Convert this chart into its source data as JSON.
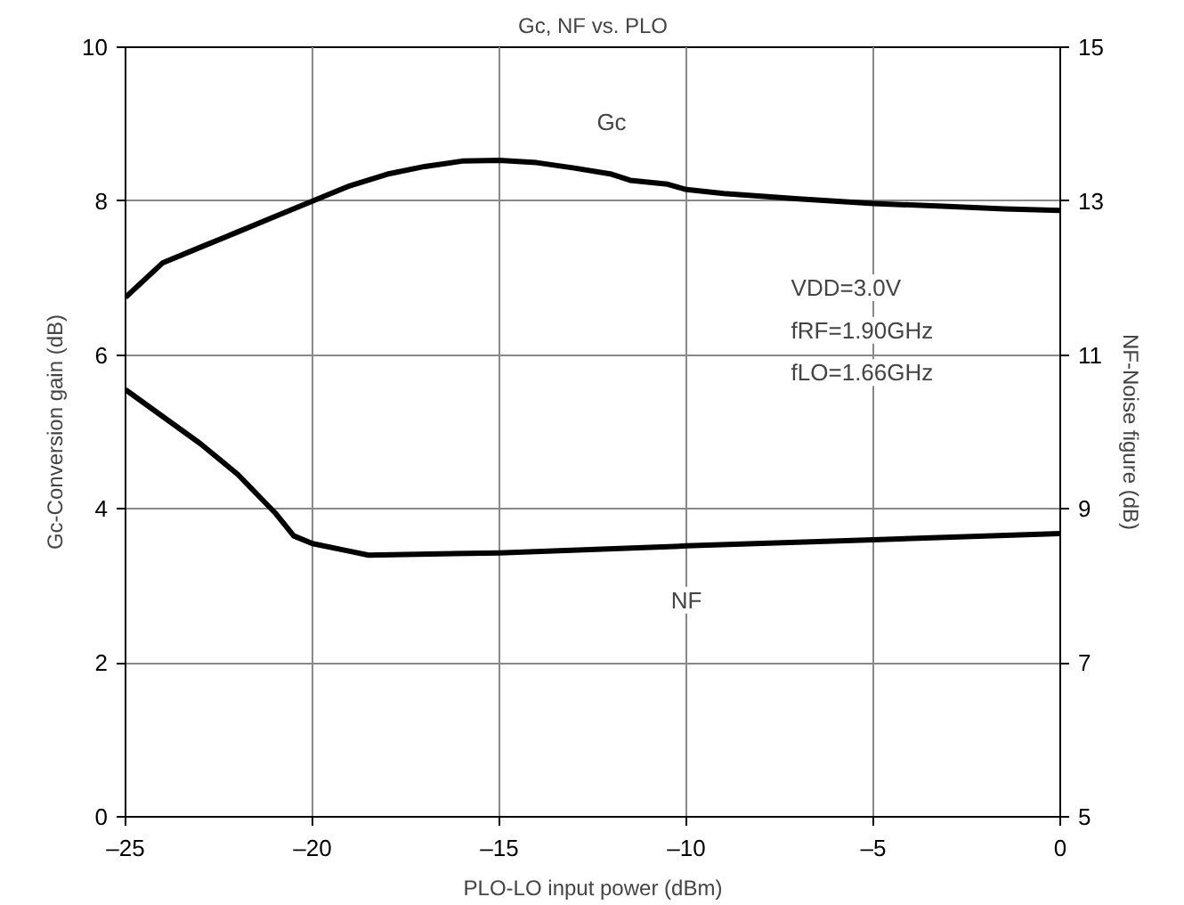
{
  "chart_data": {
    "type": "line",
    "title": "Gc, NF vs. PLO",
    "xlabel": "PLO-LO input power (dBm)",
    "ylabel": "Gc-Conversion gain (dB)",
    "y2label": "NF-Noise figure (dB)",
    "xlim": [
      -25,
      0
    ],
    "xticks": [
      {
        "value": -25,
        "label": "–25"
      },
      {
        "value": -20,
        "label": "–20"
      },
      {
        "value": -15,
        "label": "–15"
      },
      {
        "value": -10,
        "label": "–10"
      },
      {
        "value": -5,
        "label": "–5"
      },
      0
    ],
    "ylim": [
      0,
      10
    ],
    "yticks": [
      0,
      2,
      4,
      6,
      8,
      10
    ],
    "y2lim": [
      5,
      15
    ],
    "y2ticks": [
      5,
      7,
      9,
      11,
      13,
      15
    ],
    "grid": true,
    "line_style": "solid",
    "marker": "none",
    "series": [
      {
        "name": "Gc",
        "color": "#000000",
        "x": [
          -25,
          -24,
          -23,
          -22,
          -21,
          -20,
          -19,
          -18,
          -17,
          -16,
          -15,
          -14,
          -13,
          -12,
          -11.5,
          -10.5,
          -10,
          -9,
          -7,
          -5,
          -3,
          -1.5,
          0
        ],
        "values": [
          6.75,
          7.2,
          7.4,
          7.6,
          7.8,
          8.0,
          8.2,
          8.35,
          8.45,
          8.52,
          8.53,
          8.5,
          8.43,
          8.35,
          8.27,
          8.22,
          8.15,
          8.1,
          8.03,
          7.97,
          7.93,
          7.9,
          7.88
        ]
      },
      {
        "name": "NF",
        "color": "#000000",
        "axis": "y2",
        "x": [
          -25,
          -24,
          -23,
          -22,
          -21,
          -20.5,
          -20,
          -19,
          -18.5,
          -15,
          -10,
          -5,
          0
        ],
        "values": [
          10.55,
          10.2,
          9.85,
          9.45,
          8.95,
          8.65,
          8.55,
          8.45,
          8.4,
          8.43,
          8.52,
          8.6,
          8.68
        ]
      }
    ],
    "annotations": [
      "VDD=3.0V",
      "fRF=1.90GHz",
      "fLO=1.66GHz"
    ]
  }
}
